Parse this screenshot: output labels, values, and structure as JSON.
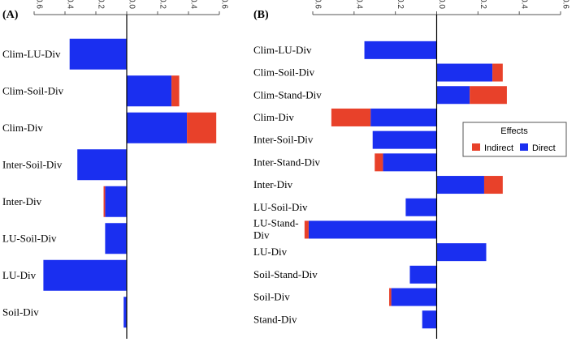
{
  "chart_data": [
    {
      "type": "bar",
      "orientation": "horizontal",
      "stacked": true,
      "panel_label": "(A)",
      "xlim": [
        -0.6,
        0.6
      ],
      "ticks": [
        -0.6,
        -0.4,
        -0.2,
        0.0,
        0.2,
        0.4,
        0.6
      ],
      "tick_labels": [
        "-0.6",
        "-0.4",
        "-0.2",
        "0.0",
        "0.2",
        "0.4",
        "0.6"
      ],
      "categories": [
        "Clim-LU-Div",
        "Clim-Soil-Div",
        "Clim-Div",
        "Inter-Soil-Div",
        "Inter-Div",
        "LU-Soil-Div",
        "LU-Div",
        "Soil-Div"
      ],
      "series": [
        {
          "name": "Direct",
          "values": [
            -0.37,
            0.29,
            0.39,
            -0.32,
            -0.14,
            -0.14,
            -0.54,
            -0.02
          ]
        },
        {
          "name": "Indirect",
          "values": [
            0.0,
            0.05,
            0.19,
            0.0,
            -0.01,
            0.0,
            0.0,
            0.0
          ]
        }
      ]
    },
    {
      "type": "bar",
      "orientation": "horizontal",
      "stacked": true,
      "panel_label": "(B)",
      "xlim": [
        -0.6,
        0.6
      ],
      "ticks": [
        -0.6,
        -0.4,
        -0.2,
        0.0,
        0.2,
        0.4,
        0.6
      ],
      "tick_labels": [
        "-0.6",
        "-0.4",
        "-0.2",
        "0.0",
        "0.2",
        "0.4",
        "0.6"
      ],
      "categories": [
        "Clim-LU-Div",
        "Clim-Soil-Div",
        "Clim-Stand-Div",
        "Clim-Div",
        "Inter-Soil-Div",
        "Inter-Stand-Div",
        "Inter-Div",
        "LU-Soil-Div",
        "LU-Stand-Div",
        "LU-Div",
        "Soil-Stand-Div",
        "Soil-Div",
        "Stand-Div"
      ],
      "series": [
        {
          "name": "Direct",
          "values": [
            -0.35,
            0.27,
            0.16,
            -0.32,
            -0.31,
            -0.26,
            0.23,
            -0.15,
            -0.62,
            0.24,
            -0.13,
            -0.22,
            -0.07
          ]
        },
        {
          "name": "Indirect",
          "values": [
            0.0,
            0.05,
            0.18,
            -0.19,
            0.0,
            -0.04,
            0.09,
            0.0,
            -0.02,
            0.0,
            0.0,
            -0.01,
            0.0
          ]
        }
      ],
      "legend": {
        "title": "Effects",
        "position": "right",
        "entries": [
          "Indirect",
          "Direct"
        ]
      }
    }
  ],
  "colors": {
    "direct": "#1a2ff0",
    "indirect": "#e8412a"
  }
}
